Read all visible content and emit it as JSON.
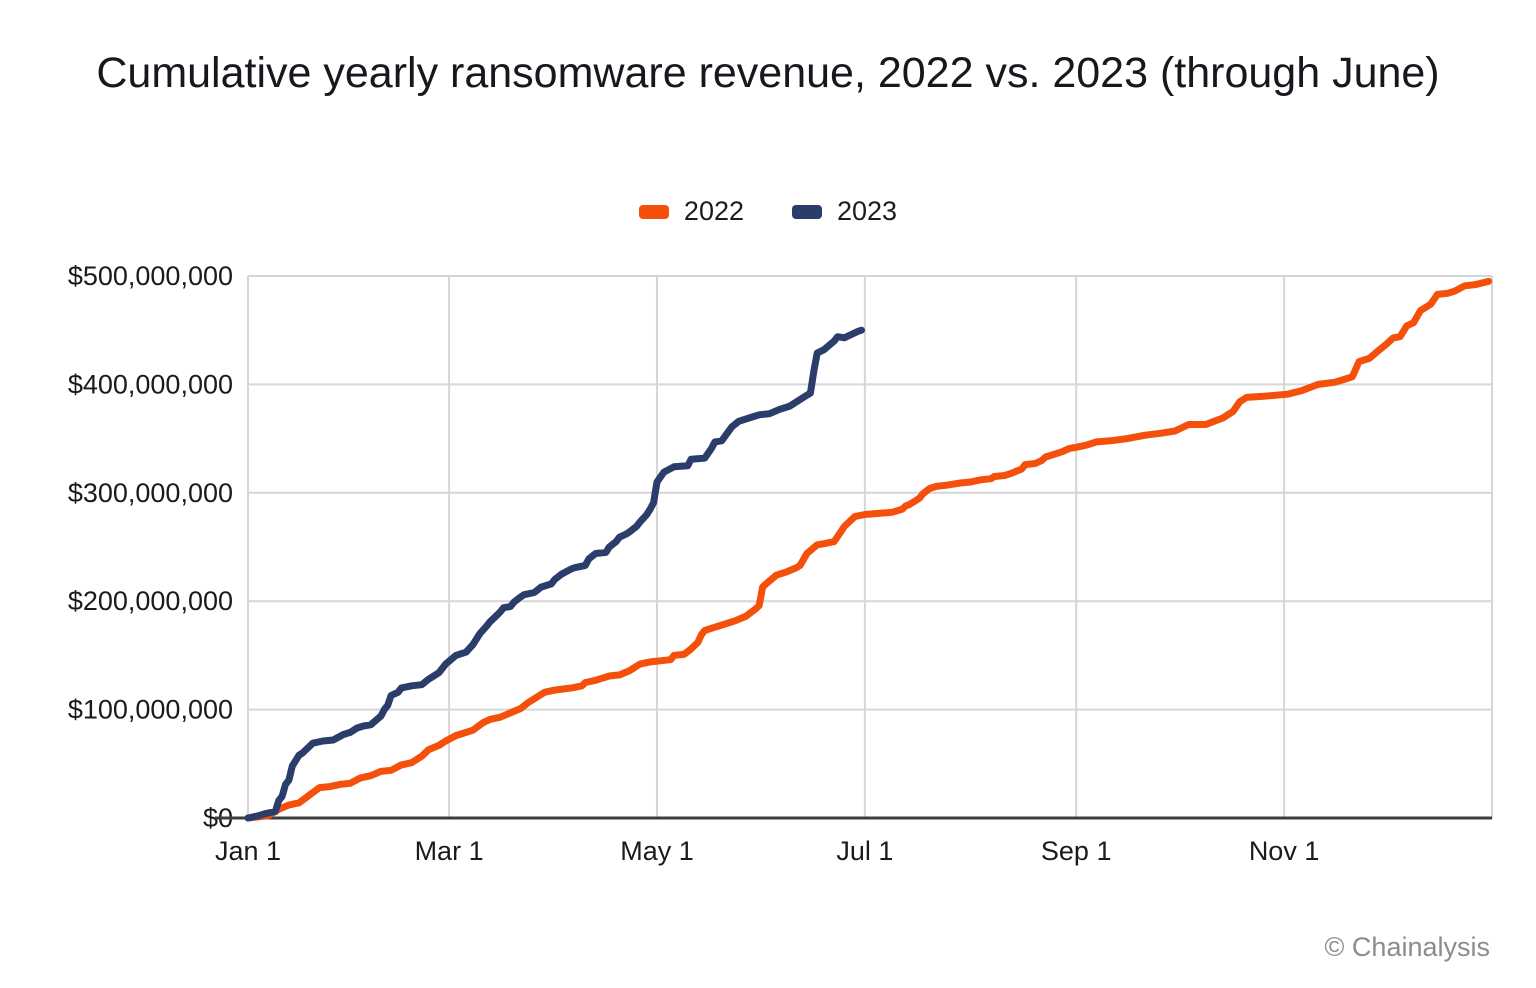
{
  "title": "Cumulative yearly ransomware revenue, 2022 vs. 2023 (through June)",
  "footer": "© Chainalysis",
  "legend": [
    {
      "label": "2022",
      "color": "#F4500B"
    },
    {
      "label": "2023",
      "color": "#2B3D6B"
    }
  ],
  "chart_data": {
    "type": "line",
    "title": "Cumulative yearly ransomware revenue, 2022 vs. 2023 (through June)",
    "xlabel": "",
    "ylabel": "",
    "units": {
      "x": "day of year",
      "y": "USD millions (cumulative revenue)"
    },
    "grid": true,
    "legend_position": "top",
    "style": {
      "grid_color": "#d6d6d6",
      "axis_color": "#3d3d3d",
      "line_width": 7
    },
    "x_axis": {
      "range_days": [
        0,
        365
      ],
      "ticks": [
        {
          "day": 0,
          "label": "Jan 1"
        },
        {
          "day": 59,
          "label": "Mar 1"
        },
        {
          "day": 120,
          "label": "May 1"
        },
        {
          "day": 181,
          "label": "Jul 1"
        },
        {
          "day": 243,
          "label": "Sep 1"
        },
        {
          "day": 304,
          "label": "Nov 1"
        }
      ]
    },
    "y_axis": {
      "range_usd": [
        0,
        500000000
      ],
      "ticks": [
        {
          "value": 0,
          "label": "$0"
        },
        {
          "value": 100000000,
          "label": "$100,000,000"
        },
        {
          "value": 200000000,
          "label": "$200,000,000"
        },
        {
          "value": 300000000,
          "label": "$300,000,000"
        },
        {
          "value": 400000000,
          "label": "$400,000,000"
        },
        {
          "value": 500000000,
          "label": "$500,000,000"
        }
      ]
    },
    "series": [
      {
        "name": "2022",
        "color": "#F4500B",
        "points_day_usd_millions": [
          [
            0,
            0
          ],
          [
            3,
            1
          ],
          [
            6,
            2
          ],
          [
            9,
            8
          ],
          [
            12,
            12
          ],
          [
            15,
            14
          ],
          [
            18,
            21
          ],
          [
            21,
            28
          ],
          [
            24,
            29
          ],
          [
            27,
            31
          ],
          [
            30,
            32
          ],
          [
            33,
            37
          ],
          [
            36,
            39
          ],
          [
            39,
            43
          ],
          [
            42,
            44
          ],
          [
            45,
            49
          ],
          [
            48,
            51
          ],
          [
            51,
            57
          ],
          [
            53,
            63
          ],
          [
            56,
            67
          ],
          [
            58,
            71
          ],
          [
            61,
            76
          ],
          [
            64,
            79
          ],
          [
            66,
            81
          ],
          [
            69,
            88
          ],
          [
            71,
            91
          ],
          [
            74,
            93
          ],
          [
            77,
            97
          ],
          [
            80,
            101
          ],
          [
            82,
            106
          ],
          [
            87,
            116
          ],
          [
            90,
            118
          ],
          [
            95,
            120
          ],
          [
            98,
            122
          ],
          [
            99,
            125
          ],
          [
            102,
            127
          ],
          [
            103,
            128
          ],
          [
            106,
            131
          ],
          [
            109,
            132
          ],
          [
            112,
            136
          ],
          [
            115,
            142
          ],
          [
            118,
            144
          ],
          [
            121,
            145
          ],
          [
            124,
            146
          ],
          [
            125,
            150
          ],
          [
            128,
            151
          ],
          [
            130,
            156
          ],
          [
            132,
            162
          ],
          [
            133,
            169
          ],
          [
            134,
            173
          ],
          [
            137,
            176
          ],
          [
            140,
            179
          ],
          [
            143,
            182
          ],
          [
            146,
            186
          ],
          [
            149,
            193
          ],
          [
            150,
            196
          ],
          [
            151,
            213
          ],
          [
            152,
            216
          ],
          [
            155,
            224
          ],
          [
            158,
            227
          ],
          [
            161,
            231
          ],
          [
            162,
            233
          ],
          [
            164,
            244
          ],
          [
            167,
            252
          ],
          [
            169,
            253
          ],
          [
            172,
            255
          ],
          [
            175,
            269
          ],
          [
            178,
            278
          ],
          [
            181,
            280
          ],
          [
            185,
            281
          ],
          [
            189,
            282
          ],
          [
            192,
            285
          ],
          [
            193,
            288
          ],
          [
            194,
            289
          ],
          [
            196,
            293
          ],
          [
            197,
            295
          ],
          [
            198,
            299
          ],
          [
            200,
            304
          ],
          [
            202,
            306
          ],
          [
            205,
            307
          ],
          [
            209,
            309
          ],
          [
            212,
            310
          ],
          [
            215,
            312
          ],
          [
            218,
            313
          ],
          [
            219,
            315
          ],
          [
            222,
            316
          ],
          [
            224,
            318
          ],
          [
            227,
            322
          ],
          [
            228,
            326
          ],
          [
            231,
            327
          ],
          [
            233,
            330
          ],
          [
            234,
            333
          ],
          [
            237,
            336
          ],
          [
            239,
            338
          ],
          [
            241,
            341
          ],
          [
            243,
            342
          ],
          [
            246,
            344
          ],
          [
            249,
            347
          ],
          [
            253,
            348
          ],
          [
            258,
            350
          ],
          [
            263,
            353
          ],
          [
            268,
            355
          ],
          [
            272,
            357
          ],
          [
            276,
            363
          ],
          [
            281,
            363
          ],
          [
            286,
            369
          ],
          [
            289,
            375
          ],
          [
            291,
            384
          ],
          [
            293,
            388
          ],
          [
            298,
            389
          ],
          [
            305,
            391
          ],
          [
            309,
            394
          ],
          [
            314,
            400
          ],
          [
            319,
            402
          ],
          [
            322,
            405
          ],
          [
            324,
            407
          ],
          [
            326,
            421
          ],
          [
            329,
            424
          ],
          [
            332,
            432
          ],
          [
            334,
            437
          ],
          [
            336,
            443
          ],
          [
            338,
            444
          ],
          [
            340,
            454
          ],
          [
            342,
            457
          ],
          [
            344,
            468
          ],
          [
            347,
            474
          ],
          [
            349,
            483
          ],
          [
            352,
            484
          ],
          [
            354,
            486
          ],
          [
            357,
            491
          ],
          [
            360,
            492
          ],
          [
            364,
            495
          ]
        ]
      },
      {
        "name": "2023",
        "color": "#2B3D6B",
        "points_day_usd_millions": [
          [
            0,
            0
          ],
          [
            3,
            2
          ],
          [
            5,
            4
          ],
          [
            8,
            6
          ],
          [
            9,
            16
          ],
          [
            10,
            20
          ],
          [
            11,
            31
          ],
          [
            12,
            35
          ],
          [
            13,
            48
          ],
          [
            15,
            58
          ],
          [
            16,
            60
          ],
          [
            19,
            69
          ],
          [
            22,
            71
          ],
          [
            25,
            72
          ],
          [
            28,
            77
          ],
          [
            30,
            79
          ],
          [
            32,
            83
          ],
          [
            34,
            85
          ],
          [
            36,
            86
          ],
          [
            39,
            94
          ],
          [
            40,
            100
          ],
          [
            41,
            104
          ],
          [
            42,
            113
          ],
          [
            44,
            116
          ],
          [
            45,
            120
          ],
          [
            48,
            122
          ],
          [
            51,
            123
          ],
          [
            53,
            128
          ],
          [
            54,
            130
          ],
          [
            56,
            134
          ],
          [
            58,
            142
          ],
          [
            61,
            150
          ],
          [
            64,
            153
          ],
          [
            66,
            160
          ],
          [
            68,
            170
          ],
          [
            70,
            177
          ],
          [
            71,
            181
          ],
          [
            73,
            187
          ],
          [
            74,
            190
          ],
          [
            75,
            194
          ],
          [
            77,
            195
          ],
          [
            78,
            199
          ],
          [
            80,
            204
          ],
          [
            81,
            206
          ],
          [
            84,
            208
          ],
          [
            86,
            213
          ],
          [
            89,
            216
          ],
          [
            90,
            220
          ],
          [
            92,
            225
          ],
          [
            95,
            230
          ],
          [
            96,
            231
          ],
          [
            99,
            233
          ],
          [
            100,
            239
          ],
          [
            102,
            244
          ],
          [
            105,
            245
          ],
          [
            106,
            250
          ],
          [
            108,
            255
          ],
          [
            109,
            259
          ],
          [
            111,
            262
          ],
          [
            112,
            264
          ],
          [
            114,
            269
          ],
          [
            115,
            273
          ],
          [
            117,
            280
          ],
          [
            118,
            285
          ],
          [
            119,
            291
          ],
          [
            120,
            310
          ],
          [
            122,
            319
          ],
          [
            125,
            324
          ],
          [
            129,
            325
          ],
          [
            130,
            331
          ],
          [
            134,
            332
          ],
          [
            136,
            341
          ],
          [
            137,
            347
          ],
          [
            139,
            348
          ],
          [
            142,
            361
          ],
          [
            144,
            366
          ],
          [
            147,
            369
          ],
          [
            150,
            372
          ],
          [
            153,
            373
          ],
          [
            156,
            377
          ],
          [
            159,
            380
          ],
          [
            161,
            384
          ],
          [
            164,
            390
          ],
          [
            165,
            392
          ],
          [
            166,
            412
          ],
          [
            167,
            429
          ],
          [
            169,
            432
          ],
          [
            172,
            440
          ],
          [
            173,
            444
          ],
          [
            175,
            443
          ],
          [
            177,
            446
          ],
          [
            179,
            449
          ],
          [
            180,
            450
          ]
        ]
      }
    ]
  }
}
